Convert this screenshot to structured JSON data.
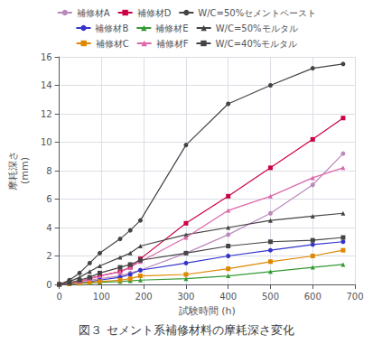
{
  "chart_data": {
    "type": "line",
    "title": "図３ セメント系補修材料の摩耗深さ変化",
    "xlabel": "試験時間 (h)",
    "ylabel": "摩耗深さ\n(mm)",
    "xlim": [
      0,
      700
    ],
    "ylim": [
      0,
      16
    ],
    "xticks": [
      0,
      100,
      200,
      300,
      400,
      500,
      600,
      700
    ],
    "yticks": [
      0,
      2,
      4,
      6,
      8,
      10,
      12,
      14,
      16
    ],
    "grid": true,
    "legend": "top",
    "series": [
      {
        "name": "補修材A",
        "color": "#bb88bb",
        "marker": "circle",
        "x": [
          0,
          24,
          48,
          72,
          96,
          144,
          168,
          192,
          300,
          400,
          500,
          600,
          672
        ],
        "values": [
          0,
          0.1,
          0.2,
          0.3,
          0.4,
          0.6,
          0.8,
          1.0,
          2.2,
          3.5,
          5.0,
          7.0,
          9.2
        ]
      },
      {
        "name": "補修材D",
        "color": "#cc0044",
        "marker": "square",
        "x": [
          0,
          24,
          48,
          72,
          96,
          144,
          168,
          192,
          300,
          400,
          500,
          600,
          672
        ],
        "values": [
          0,
          0.1,
          0.2,
          0.4,
          0.6,
          0.9,
          1.2,
          1.8,
          4.3,
          6.2,
          8.2,
          10.2,
          11.7
        ]
      },
      {
        "name": "W/C=50%セメントペースト",
        "color": "#444444",
        "marker": "circle",
        "x": [
          0,
          24,
          48,
          72,
          96,
          144,
          168,
          192,
          300,
          400,
          500,
          600,
          672
        ],
        "values": [
          0,
          0.3,
          0.8,
          1.5,
          2.2,
          3.2,
          3.8,
          4.5,
          9.8,
          12.7,
          14.0,
          15.2,
          15.5
        ]
      },
      {
        "name": "補修材B",
        "color": "#3333cc",
        "marker": "circle",
        "x": [
          0,
          24,
          48,
          72,
          96,
          144,
          168,
          192,
          300,
          400,
          500,
          600,
          672
        ],
        "values": [
          0,
          0.05,
          0.1,
          0.2,
          0.3,
          0.5,
          0.7,
          1.0,
          1.5,
          2.0,
          2.4,
          2.8,
          3.0
        ]
      },
      {
        "name": "補修材E",
        "color": "#339933",
        "marker": "triangle",
        "x": [
          0,
          24,
          48,
          72,
          96,
          144,
          168,
          192,
          300,
          400,
          500,
          600,
          672
        ],
        "values": [
          0,
          0.05,
          0.08,
          0.1,
          0.15,
          0.2,
          0.25,
          0.3,
          0.4,
          0.6,
          0.9,
          1.2,
          1.4
        ]
      },
      {
        "name": "W/C=50%モルタル",
        "color": "#444444",
        "marker": "triangle",
        "x": [
          0,
          24,
          48,
          72,
          96,
          144,
          168,
          192,
          300,
          400,
          500,
          600,
          672
        ],
        "values": [
          0,
          0.2,
          0.5,
          0.9,
          1.3,
          1.9,
          2.2,
          2.7,
          3.5,
          4.0,
          4.5,
          4.8,
          5.0
        ]
      },
      {
        "name": "補修材C",
        "color": "#dd8800",
        "marker": "square",
        "x": [
          0,
          24,
          48,
          72,
          96,
          144,
          168,
          192,
          300,
          400,
          500,
          600,
          672
        ],
        "values": [
          0,
          0.05,
          0.1,
          0.15,
          0.2,
          0.3,
          0.4,
          0.6,
          0.7,
          1.1,
          1.6,
          2.0,
          2.4
        ]
      },
      {
        "name": "補修材F",
        "color": "#dd66aa",
        "marker": "triangle",
        "x": [
          0,
          24,
          48,
          72,
          96,
          144,
          168,
          192,
          300,
          400,
          500,
          600,
          672
        ],
        "values": [
          0,
          0.1,
          0.2,
          0.4,
          0.6,
          0.9,
          1.2,
          1.6,
          3.3,
          5.2,
          6.2,
          7.5,
          8.2
        ]
      },
      {
        "name": "W/C=40%モルタル",
        "color": "#444444",
        "marker": "square",
        "x": [
          0,
          24,
          48,
          72,
          96,
          144,
          168,
          192,
          300,
          400,
          500,
          600,
          672
        ],
        "values": [
          0,
          0.1,
          0.3,
          0.5,
          0.8,
          1.2,
          1.4,
          1.7,
          2.2,
          2.7,
          3.0,
          3.1,
          3.3
        ]
      }
    ]
  }
}
